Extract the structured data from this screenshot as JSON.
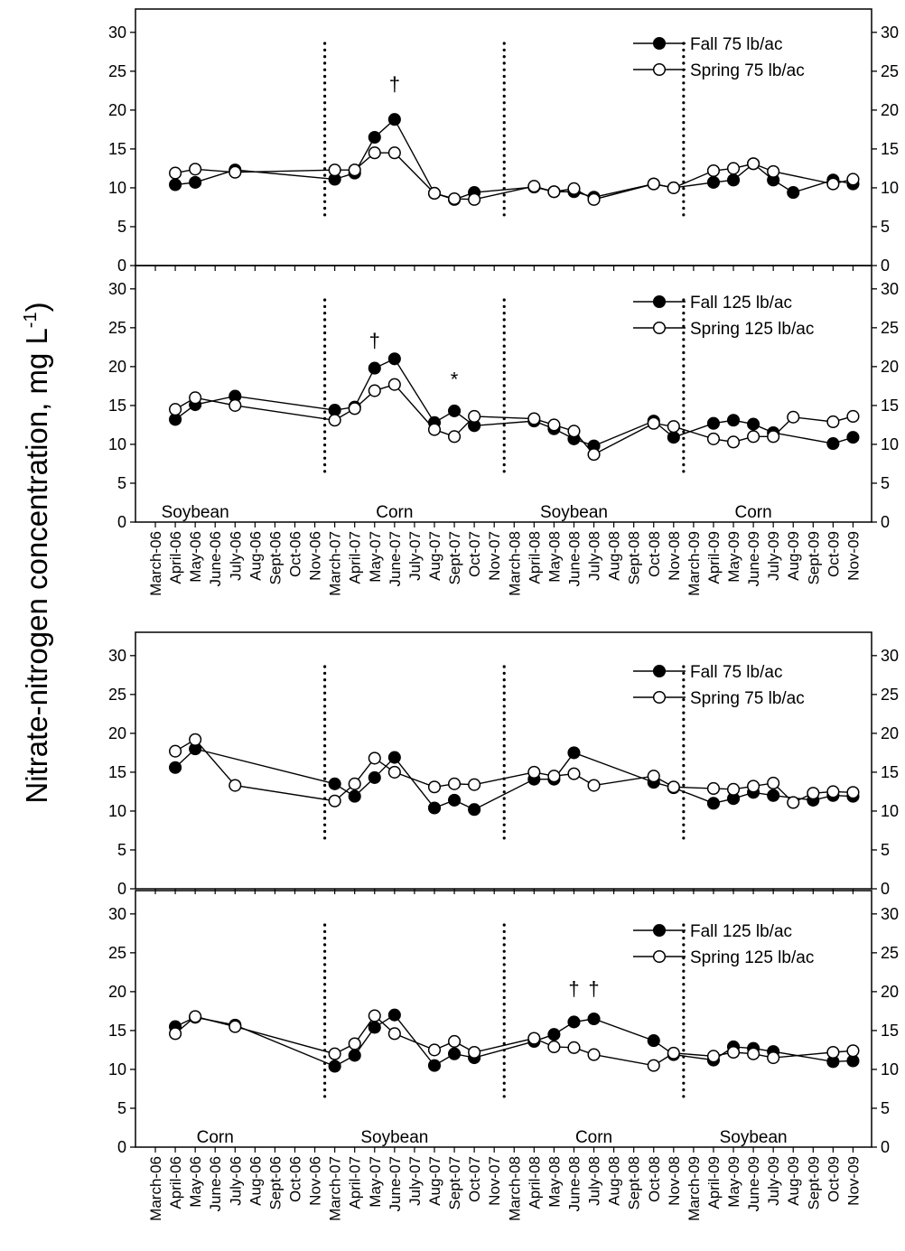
{
  "y_axis_label": "Nitrate-nitrogen concentration, mg L",
  "y_axis_label_sup": "-1",
  "months": [
    "March-06",
    "April-06",
    "May-06",
    "June-06",
    "July-06",
    "Aug-06",
    "Sept-06",
    "Oct-06",
    "Nov-06",
    "March-07",
    "April-07",
    "May-07",
    "June-07",
    "July-07",
    "Aug-07",
    "Sept-07",
    "Oct-07",
    "Nov-07",
    "March-08",
    "April-08",
    "May-08",
    "June-08",
    "July-08",
    "Aug-08",
    "Sept-08",
    "Oct-08",
    "Nov-08",
    "March-09",
    "April-09",
    "May-09",
    "June-09",
    "July-09",
    "Aug-09",
    "Sept-09",
    "Oct-09",
    "Nov-09"
  ],
  "y_ticks": [
    0,
    5,
    10,
    15,
    20,
    25,
    30
  ],
  "colors": {
    "fall_marker": "#000000",
    "spring_marker": "#ffffff"
  },
  "chart_data": [
    {
      "type": "line",
      "panel": 1,
      "ylim": [
        0,
        33
      ],
      "legend_position": "top-right",
      "crops": [],
      "symbols": [
        {
          "text": "†",
          "month": "June-07",
          "y": 22.5
        }
      ],
      "series": [
        {
          "name": "Fall 75 lb/ac",
          "filled": true,
          "points": [
            [
              "April-06",
              10.4
            ],
            [
              "May-06",
              10.7
            ],
            [
              "July-06",
              12.3
            ],
            [
              "March-07",
              11.1
            ],
            [
              "April-07",
              11.9
            ],
            [
              "May-07",
              16.5
            ],
            [
              "June-07",
              18.8
            ],
            [
              "Aug-07",
              9.3
            ],
            [
              "Sept-07",
              8.5
            ],
            [
              "Oct-07",
              9.4
            ],
            [
              "April-08",
              10.1
            ],
            [
              "May-08",
              9.5
            ],
            [
              "June-08",
              9.5
            ],
            [
              "July-08",
              8.8
            ],
            [
              "Oct-08",
              10.5
            ],
            [
              "Nov-08",
              10.0
            ],
            [
              "April-09",
              10.7
            ],
            [
              "May-09",
              11.0
            ],
            [
              "June-09",
              13.1
            ],
            [
              "July-09",
              11.0
            ],
            [
              "Aug-09",
              9.4
            ],
            [
              "Oct-09",
              11.0
            ],
            [
              "Nov-09",
              10.5
            ]
          ]
        },
        {
          "name": "Spring 75 lb/ac",
          "filled": false,
          "points": [
            [
              "April-06",
              11.9
            ],
            [
              "May-06",
              12.4
            ],
            [
              "July-06",
              12.0
            ],
            [
              "March-07",
              12.3
            ],
            [
              "April-07",
              12.3
            ],
            [
              "May-07",
              14.5
            ],
            [
              "June-07",
              14.5
            ],
            [
              "Aug-07",
              9.3
            ],
            [
              "Sept-07",
              8.6
            ],
            [
              "Oct-07",
              8.5
            ],
            [
              "April-08",
              10.2
            ],
            [
              "May-08",
              9.5
            ],
            [
              "June-08",
              9.9
            ],
            [
              "July-08",
              8.5
            ],
            [
              "Oct-08",
              10.5
            ],
            [
              "Nov-08",
              10.0
            ],
            [
              "April-09",
              12.2
            ],
            [
              "May-09",
              12.5
            ],
            [
              "June-09",
              13.1
            ],
            [
              "July-09",
              12.1
            ],
            [
              "Oct-09",
              10.5
            ],
            [
              "Nov-09",
              11.1
            ]
          ]
        }
      ]
    },
    {
      "type": "line",
      "panel": 2,
      "ylim": [
        0,
        33
      ],
      "legend_position": "top-right",
      "crops": [
        {
          "label": "Soybean",
          "month": "May-06"
        },
        {
          "label": "Corn",
          "month": "June-07"
        },
        {
          "label": "Soybean",
          "month": "June-08"
        },
        {
          "label": "Corn",
          "month": "June-09"
        }
      ],
      "symbols": [
        {
          "text": "†",
          "month": "May-07",
          "y": 22.5
        },
        {
          "text": "*",
          "month": "Sept-07",
          "y": 17.5
        }
      ],
      "series": [
        {
          "name": "Fall 125 lb/ac",
          "filled": true,
          "points": [
            [
              "April-06",
              13.2
            ],
            [
              "May-06",
              15.1
            ],
            [
              "July-06",
              16.2
            ],
            [
              "March-07",
              14.4
            ],
            [
              "April-07",
              14.8
            ],
            [
              "May-07",
              19.8
            ],
            [
              "June-07",
              21.0
            ],
            [
              "Aug-07",
              12.8
            ],
            [
              "Sept-07",
              14.3
            ],
            [
              "Oct-07",
              12.4
            ],
            [
              "April-08",
              13.0
            ],
            [
              "May-08",
              12.0
            ],
            [
              "June-08",
              10.7
            ],
            [
              "July-08",
              9.8
            ],
            [
              "Oct-08",
              13.0
            ],
            [
              "Nov-08",
              10.9
            ],
            [
              "April-09",
              12.7
            ],
            [
              "May-09",
              13.1
            ],
            [
              "June-09",
              12.6
            ],
            [
              "July-09",
              11.5
            ],
            [
              "Oct-09",
              10.1
            ],
            [
              "Nov-09",
              10.9
            ]
          ]
        },
        {
          "name": "Spring 125 lb/ac",
          "filled": false,
          "points": [
            [
              "April-06",
              14.5
            ],
            [
              "May-06",
              16.0
            ],
            [
              "July-06",
              15.0
            ],
            [
              "March-07",
              13.1
            ],
            [
              "April-07",
              14.6
            ],
            [
              "May-07",
              16.9
            ],
            [
              "June-07",
              17.7
            ],
            [
              "Aug-07",
              11.9
            ],
            [
              "Sept-07",
              11.0
            ],
            [
              "Oct-07",
              13.6
            ],
            [
              "April-08",
              13.3
            ],
            [
              "May-08",
              12.5
            ],
            [
              "June-08",
              11.7
            ],
            [
              "July-08",
              8.7
            ],
            [
              "Oct-08",
              12.7
            ],
            [
              "Nov-08",
              12.3
            ],
            [
              "April-09",
              10.7
            ],
            [
              "May-09",
              10.3
            ],
            [
              "June-09",
              11.0
            ],
            [
              "July-09",
              11.0
            ],
            [
              "Aug-09",
              13.5
            ],
            [
              "Oct-09",
              12.9
            ],
            [
              "Nov-09",
              13.6
            ]
          ]
        }
      ]
    },
    {
      "type": "line",
      "panel": 3,
      "ylim": [
        0,
        33
      ],
      "legend_position": "top-right",
      "crops": [],
      "symbols": [],
      "series": [
        {
          "name": "Fall 75 lb/ac",
          "filled": true,
          "points": [
            [
              "April-06",
              15.6
            ],
            [
              "May-06",
              18.0
            ],
            [
              "March-07",
              13.5
            ],
            [
              "April-07",
              11.9
            ],
            [
              "May-07",
              14.3
            ],
            [
              "June-07",
              16.9
            ],
            [
              "Aug-07",
              10.4
            ],
            [
              "Sept-07",
              11.4
            ],
            [
              "Oct-07",
              10.2
            ],
            [
              "April-08",
              14.1
            ],
            [
              "May-08",
              14.1
            ],
            [
              "June-08",
              17.5
            ],
            [
              "Oct-08",
              13.7
            ],
            [
              "Nov-08",
              13.0
            ],
            [
              "April-09",
              11.0
            ],
            [
              "May-09",
              11.6
            ],
            [
              "June-09",
              12.4
            ],
            [
              "July-09",
              12.0
            ],
            [
              "Sept-09",
              11.4
            ],
            [
              "Oct-09",
              12.0
            ],
            [
              "Nov-09",
              11.9
            ]
          ]
        },
        {
          "name": "Spring 75 lb/ac",
          "filled": false,
          "points": [
            [
              "April-06",
              17.7
            ],
            [
              "May-06",
              19.2
            ],
            [
              "July-06",
              13.3
            ],
            [
              "March-07",
              11.3
            ],
            [
              "April-07",
              13.5
            ],
            [
              "May-07",
              16.8
            ],
            [
              "June-07",
              15.0
            ],
            [
              "Aug-07",
              13.1
            ],
            [
              "Sept-07",
              13.5
            ],
            [
              "Oct-07",
              13.4
            ],
            [
              "April-08",
              15.0
            ],
            [
              "May-08",
              14.5
            ],
            [
              "June-08",
              14.8
            ],
            [
              "July-08",
              13.3
            ],
            [
              "Oct-08",
              14.5
            ],
            [
              "Nov-08",
              13.1
            ],
            [
              "April-09",
              12.9
            ],
            [
              "May-09",
              12.8
            ],
            [
              "June-09",
              13.2
            ],
            [
              "July-09",
              13.6
            ],
            [
              "Aug-09",
              11.1
            ],
            [
              "Sept-09",
              12.3
            ],
            [
              "Oct-09",
              12.5
            ],
            [
              "Nov-09",
              12.4
            ]
          ]
        }
      ]
    },
    {
      "type": "line",
      "panel": 4,
      "ylim": [
        0,
        33
      ],
      "legend_position": "top-right",
      "crops": [
        {
          "label": "Corn",
          "month": "June-06"
        },
        {
          "label": "Soybean",
          "month": "June-07"
        },
        {
          "label": "Corn",
          "month": "July-08"
        },
        {
          "label": "Soybean",
          "month": "June-09"
        }
      ],
      "symbols": [
        {
          "text": "†",
          "month": "June-08",
          "y": 19.5
        },
        {
          "text": "†",
          "month": "July-08",
          "y": 19.5
        }
      ],
      "series": [
        {
          "name": "Fall 125 lb/ac",
          "filled": true,
          "points": [
            [
              "April-06",
              15.5
            ],
            [
              "May-06",
              16.7
            ],
            [
              "July-06",
              15.7
            ],
            [
              "March-07",
              10.4
            ],
            [
              "April-07",
              11.8
            ],
            [
              "May-07",
              15.4
            ],
            [
              "June-07",
              17.0
            ],
            [
              "Aug-07",
              10.5
            ],
            [
              "Sept-07",
              12.0
            ],
            [
              "Oct-07",
              11.5
            ],
            [
              "April-08",
              13.6
            ],
            [
              "May-08",
              14.5
            ],
            [
              "June-08",
              16.1
            ],
            [
              "July-08",
              16.5
            ],
            [
              "Oct-08",
              13.7
            ],
            [
              "Nov-08",
              11.9
            ],
            [
              "April-09",
              11.2
            ],
            [
              "May-09",
              12.9
            ],
            [
              "June-09",
              12.7
            ],
            [
              "July-09",
              12.3
            ],
            [
              "Oct-09",
              11.0
            ],
            [
              "Nov-09",
              11.1
            ]
          ]
        },
        {
          "name": "Spring 125 lb/ac",
          "filled": false,
          "points": [
            [
              "April-06",
              14.6
            ],
            [
              "May-06",
              16.8
            ],
            [
              "July-06",
              15.5
            ],
            [
              "March-07",
              12.0
            ],
            [
              "April-07",
              13.3
            ],
            [
              "May-07",
              16.9
            ],
            [
              "June-07",
              14.6
            ],
            [
              "Aug-07",
              12.5
            ],
            [
              "Sept-07",
              13.6
            ],
            [
              "Oct-07",
              12.2
            ],
            [
              "April-08",
              14.0
            ],
            [
              "May-08",
              12.9
            ],
            [
              "June-08",
              12.8
            ],
            [
              "July-08",
              11.9
            ],
            [
              "Oct-08",
              10.5
            ],
            [
              "Nov-08",
              12.1
            ],
            [
              "April-09",
              11.7
            ],
            [
              "May-09",
              12.2
            ],
            [
              "June-09",
              12.0
            ],
            [
              "July-09",
              11.5
            ],
            [
              "Oct-09",
              12.2
            ],
            [
              "Nov-09",
              12.4
            ]
          ]
        }
      ]
    }
  ]
}
